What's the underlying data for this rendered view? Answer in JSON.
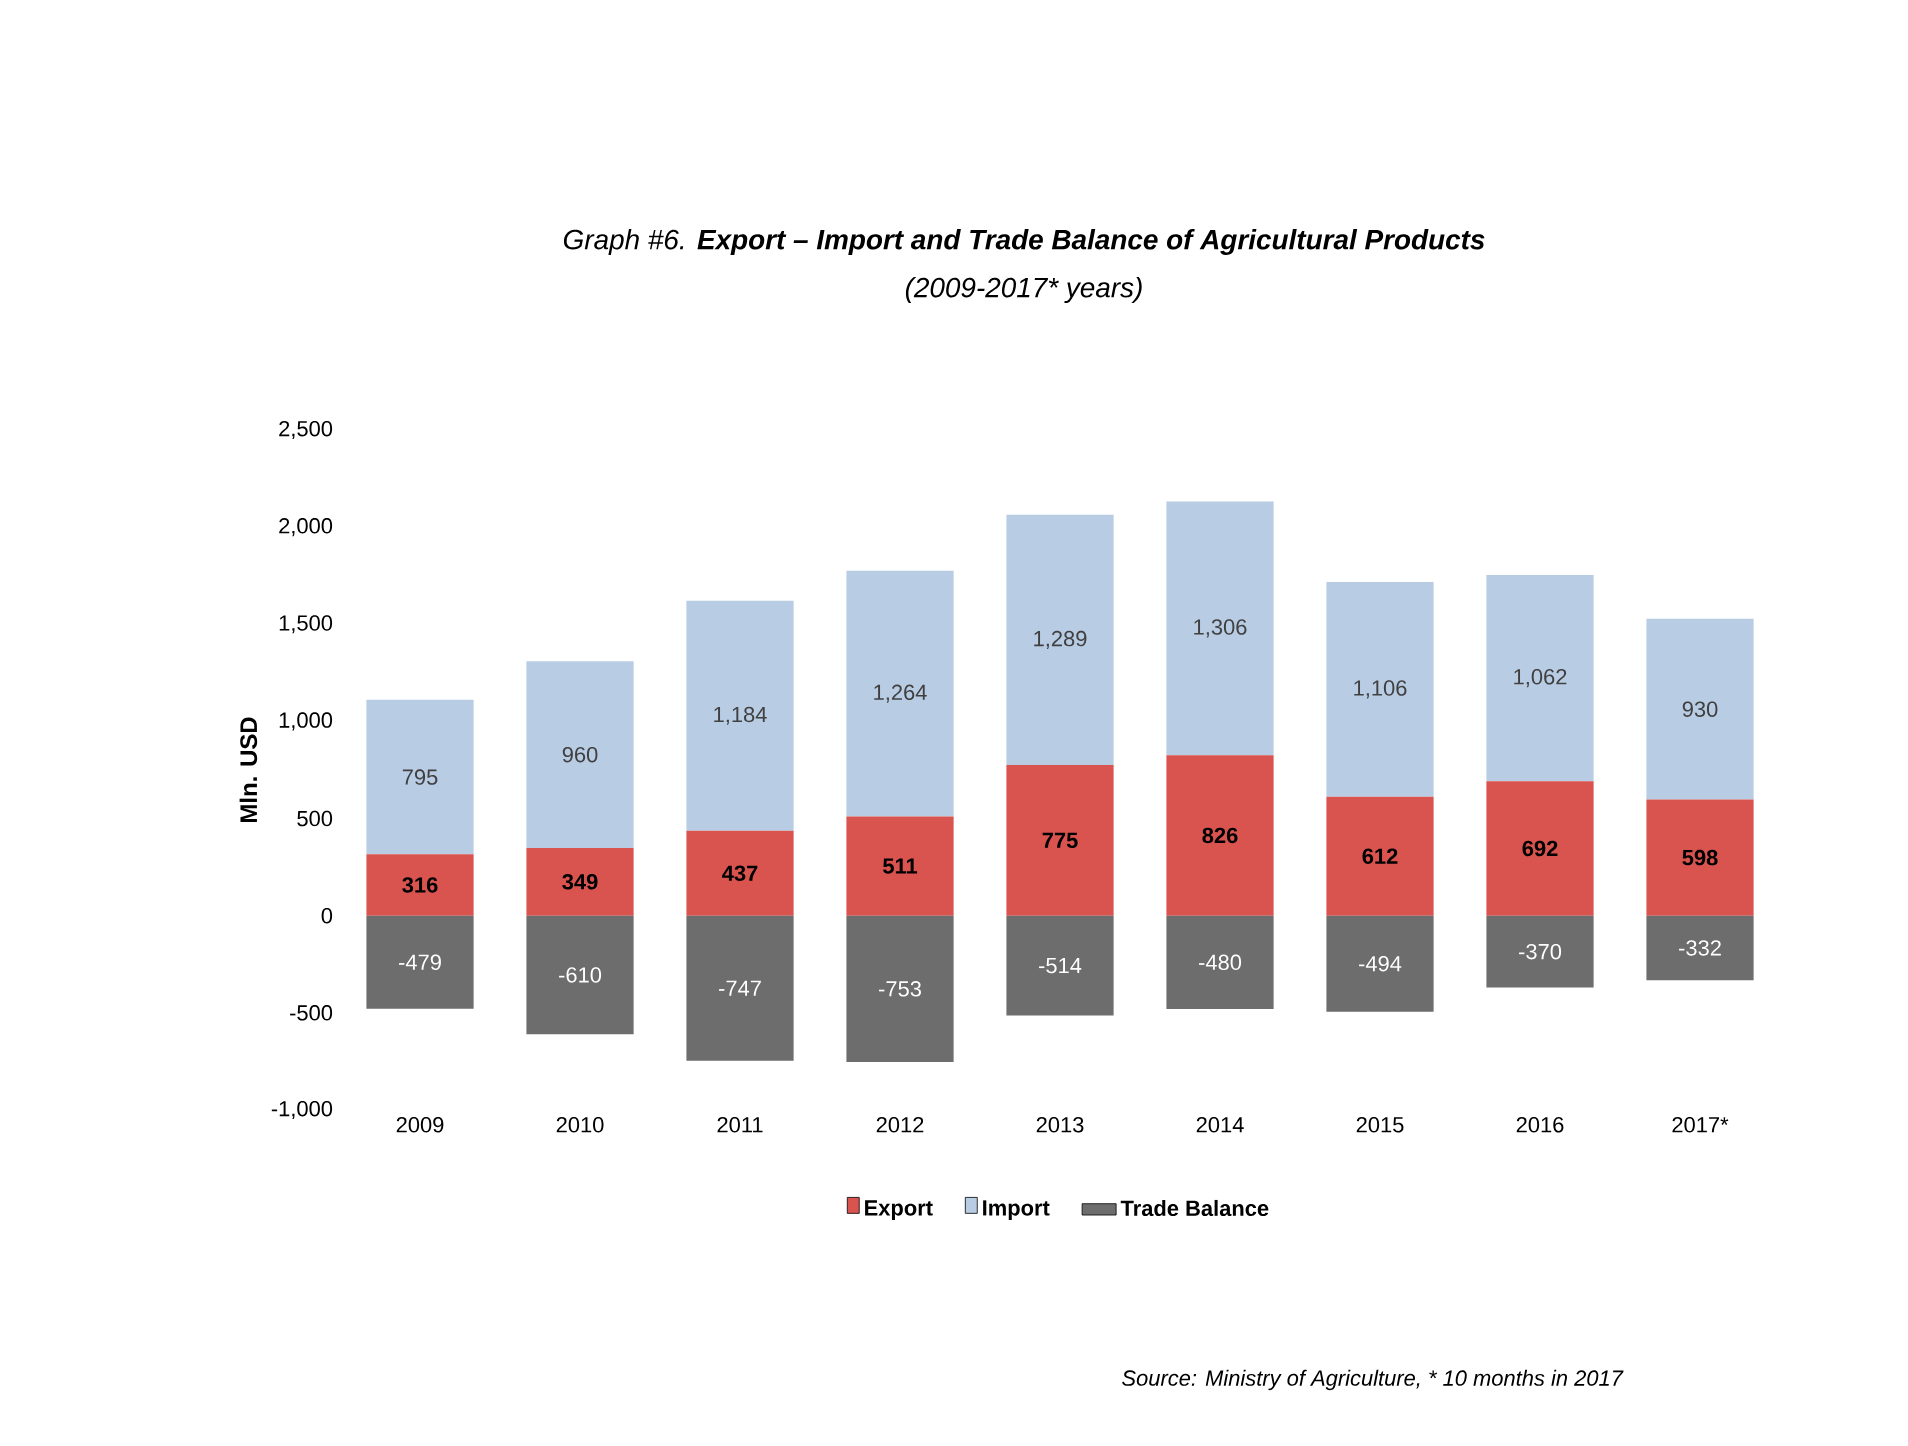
{
  "chart_data": {
    "type": "bar",
    "title": "Graph #6. **Export – Import and Trade Balance of Agricultural Products**",
    "subtitle": "(2009-2017* years)",
    "ylabel": "Mln. USD",
    "annotations": [
      "Source: Ministry of Agriculture, * 10 months in 2017"
    ],
    "categories": [
      "2009",
      "2010",
      "2011",
      "2012",
      "2013",
      "2014",
      "2015",
      "2016",
      "2017*"
    ],
    "stacked": true,
    "legend": "bottom",
    "ylim": [
      -1000,
      2500
    ],
    "yticks": [
      {
        "value": -1000,
        "label": "-1,000"
      },
      -500,
      0,
      500,
      {
        "value": 1000,
        "label": "1,000"
      },
      {
        "value": 1500,
        "label": "1,500"
      },
      {
        "value": 2000,
        "label": "2,000"
      },
      {
        "value": 2500,
        "label": "2,500"
      }
    ],
    "series": [
      {
        "name": "Export",
        "color": "#d9534f",
        "values": [
          316,
          349,
          437,
          511,
          775,
          826,
          612,
          692,
          598
        ],
        "value_labels": [
          "316",
          "349",
          "437",
          "511",
          "775",
          "826",
          "612",
          "692",
          "598"
        ]
      },
      {
        "name": "Import",
        "color": "#b8cce4",
        "values": [
          795,
          960,
          1184,
          1264,
          1289,
          1306,
          1106,
          1062,
          930
        ],
        "value_labels": [
          "795",
          "960",
          "1,184",
          "1,264",
          "1,289",
          "1,306",
          "1,106",
          "1,062",
          "930"
        ]
      },
      {
        "name": "Trade Balance",
        "color": "#6d6d6d",
        "values": [
          -479,
          -610,
          -747,
          -753,
          -514,
          -480,
          -494,
          -370,
          -332
        ],
        "value_labels": [
          "-479",
          "-610",
          "-747",
          "-753",
          "-514",
          "-480",
          "-494",
          "-370",
          "-332"
        ]
      }
    ]
  }
}
